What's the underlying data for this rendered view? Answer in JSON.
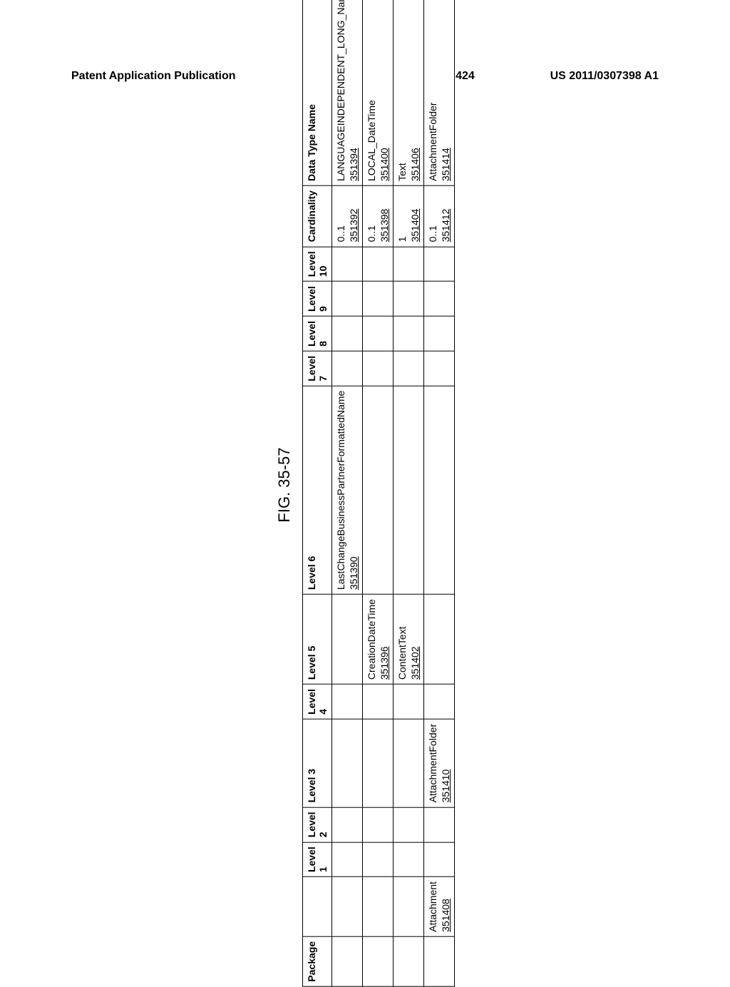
{
  "header": {
    "left": "Patent Application Publication",
    "center": "Dec. 15, 2011  Sheet 103 of 424",
    "right": "US 2011/0307398 A1"
  },
  "figure": {
    "caption": "FIG. 35-57",
    "columns": [
      "Package",
      "",
      "Level 1",
      "Level 2",
      "Level 3",
      "Level 4",
      "Level 5",
      "Level 6",
      "Level 7",
      "Level 8",
      "Level 9",
      "Level 10",
      "Cardinality",
      "Data Type Name"
    ],
    "rows": [
      {
        "package": "",
        "wide": "",
        "l1": "",
        "l2": "",
        "l3": "",
        "l4": "",
        "l5": "",
        "l6": "LastChangeBusinessPartnerFormattedName",
        "l6ref": "351390",
        "l7": "",
        "l8": "",
        "l9": "",
        "l10": "",
        "cardin": "0..1",
        "cardinref": "351392",
        "datatype": "LANGUAGEINDEPENDENT_LONG_Name",
        "datatyperef": "351394"
      },
      {
        "package": "",
        "wide": "",
        "l1": "",
        "l2": "",
        "l3": "",
        "l4": "",
        "l5": "CreationDateTime",
        "l5ref": "351396",
        "l6": "",
        "l7": "",
        "l8": "",
        "l9": "",
        "l10": "",
        "cardin": "0..1",
        "cardinref": "351398",
        "datatype": "LOCAL_DateTime",
        "datatyperef": "351400"
      },
      {
        "package": "",
        "wide": "",
        "l1": "",
        "l2": "",
        "l3": "",
        "l4": "",
        "l5": "ContentText",
        "l5ref": "351402",
        "l6": "",
        "l7": "",
        "l8": "",
        "l9": "",
        "l10": "",
        "cardin": "1",
        "cardinref": "351404",
        "datatype": "Text",
        "datatyperef": "351406"
      },
      {
        "package": "",
        "wide": "Attachment",
        "wideref": "351408",
        "l1": "",
        "l2": "",
        "l3": "AttachmentFolder",
        "l3ref": "351410",
        "l4": "",
        "l5": "",
        "l6": "",
        "l7": "",
        "l8": "",
        "l9": "",
        "l10": "",
        "cardin": "0..1",
        "cardinref": "351412",
        "datatype": "AttachmentFolder",
        "datatyperef": "351414"
      }
    ]
  }
}
